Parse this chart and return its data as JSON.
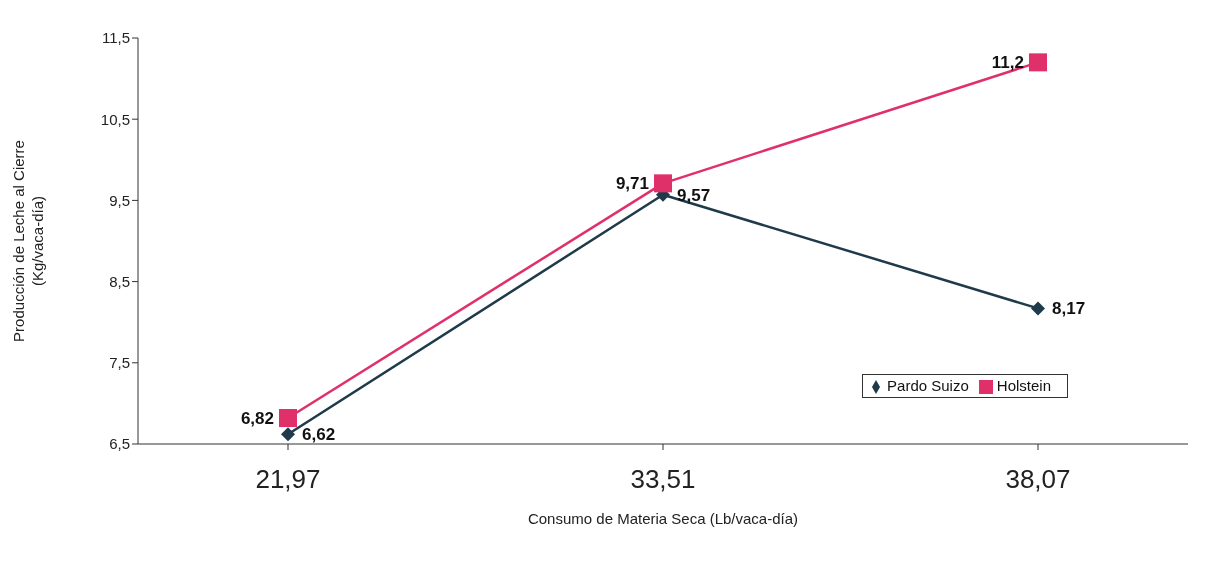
{
  "chart_data": {
    "type": "line",
    "xlabel": "Consumo de Materia Seca (Lb/vaca-día)",
    "ylabel": "Producción de Leche al Cierre\n(Kg/vaca-día)",
    "categories": [
      "21,97",
      "33,51",
      "38,07"
    ],
    "series": [
      {
        "name": "Pardo Suizo",
        "color": "#1f3a4a",
        "marker": "diamond",
        "values": [
          6.62,
          9.57,
          8.17
        ],
        "value_labels": [
          "6,62",
          "9,57",
          "8,17"
        ]
      },
      {
        "name": "Holstein",
        "color": "#e0306a",
        "marker": "square",
        "values": [
          6.82,
          9.71,
          11.2
        ],
        "value_labels": [
          "6,82",
          "9,71",
          "11,2"
        ]
      }
    ],
    "ylim": [
      6.5,
      11.5
    ],
    "yticks": [
      {
        "value": 6.5,
        "label": "6,5"
      },
      {
        "value": 7.5,
        "label": "7,5"
      },
      {
        "value": 8.5,
        "label": "8,5"
      },
      {
        "value": 9.5,
        "label": "9,5"
      },
      {
        "value": 10.5,
        "label": "10,5"
      },
      {
        "value": 11.5,
        "label": "11,5"
      }
    ],
    "grid": false,
    "legend": "bottom right",
    "line_style": "solid"
  }
}
